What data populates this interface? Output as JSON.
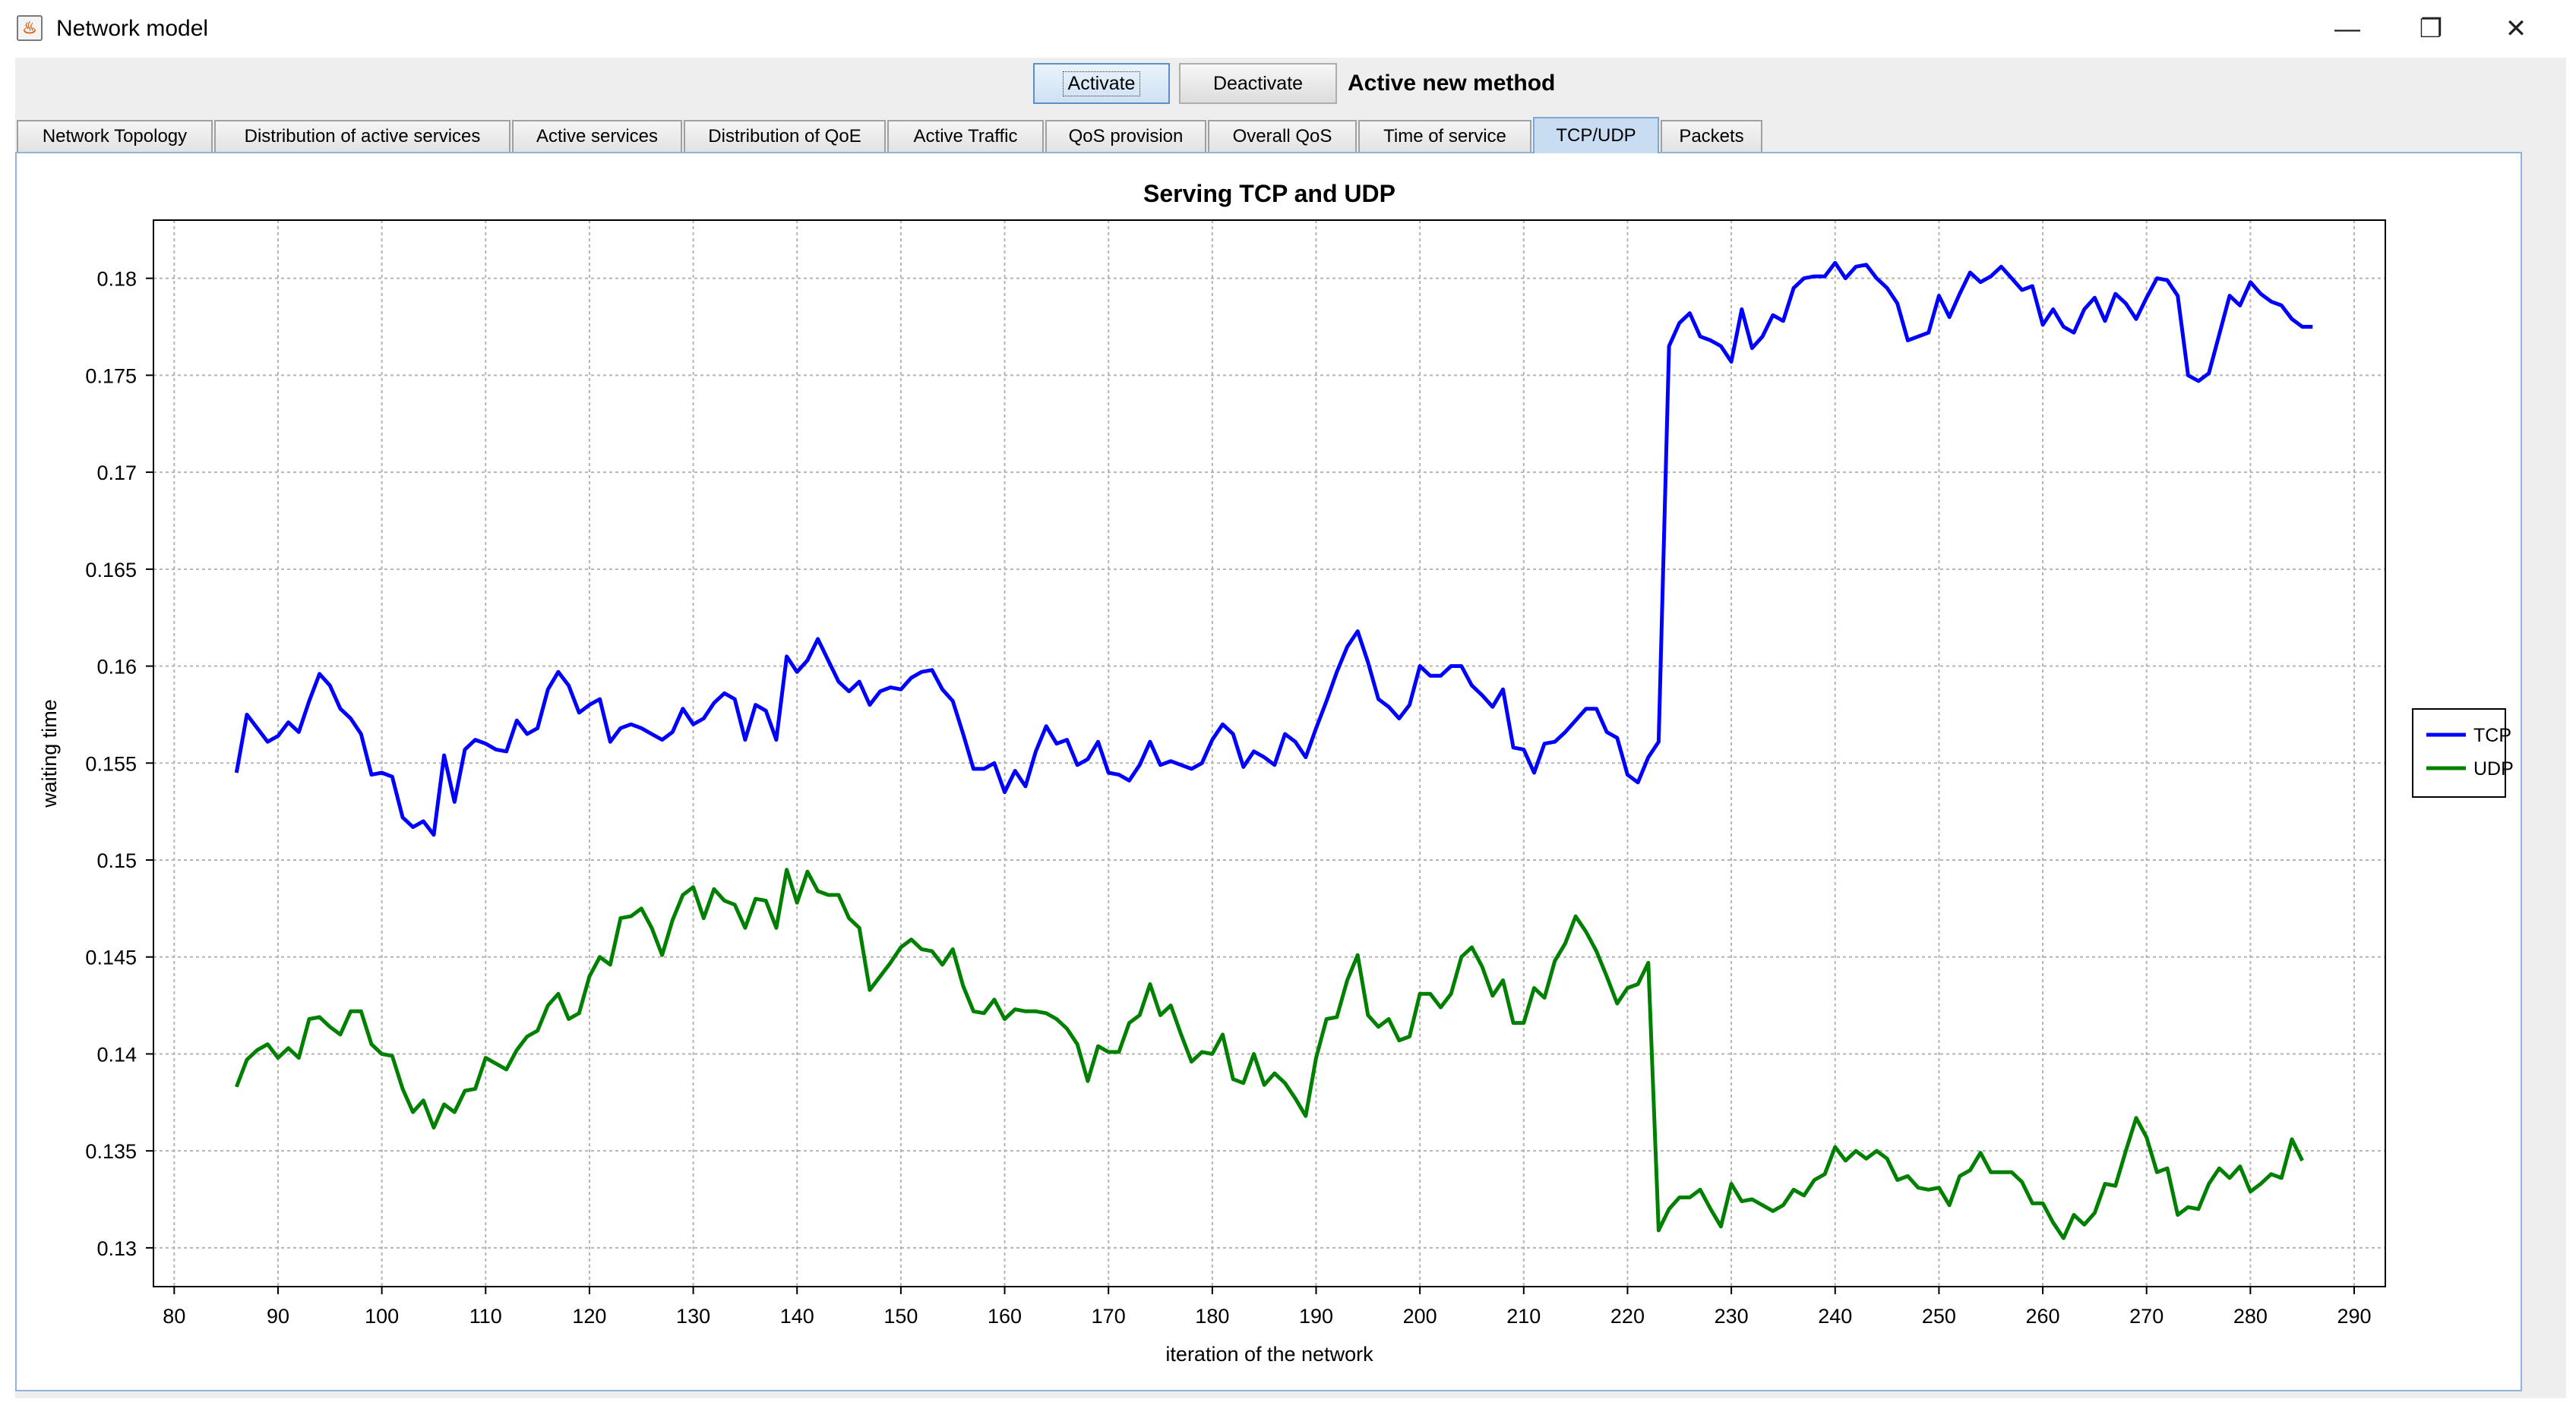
{
  "window": {
    "title": "Network model",
    "minimize_glyph": "—",
    "restore_glyph": "❐",
    "close_glyph": "✕"
  },
  "toolbar": {
    "activate_label": "Activate",
    "deactivate_label": "Deactivate",
    "status_label": "Active new method"
  },
  "tabs": [
    {
      "label": "Network Topology",
      "active": false
    },
    {
      "label": "Distribution of active services",
      "active": false
    },
    {
      "label": "Active services",
      "active": false
    },
    {
      "label": "Distribution of QoE",
      "active": false
    },
    {
      "label": "Active Traffic",
      "active": false
    },
    {
      "label": "QoS provision",
      "active": false
    },
    {
      "label": "Overall QoS",
      "active": false
    },
    {
      "label": "Time of service",
      "active": false
    },
    {
      "label": "TCP/UDP",
      "active": true
    },
    {
      "label": "Packets",
      "active": false
    }
  ],
  "chart_data": {
    "type": "line",
    "title": "Serving TCP and UDP",
    "xlabel": "iteration of the network",
    "ylabel": "waiting time",
    "xlim": [
      78,
      293
    ],
    "ylim": [
      0.128,
      0.183
    ],
    "x_ticks": [
      80,
      90,
      100,
      110,
      120,
      130,
      140,
      150,
      160,
      170,
      180,
      190,
      200,
      210,
      220,
      230,
      240,
      250,
      260,
      270,
      280,
      290
    ],
    "y_ticks": [
      0.13,
      0.135,
      0.14,
      0.145,
      0.15,
      0.155,
      0.16,
      0.165,
      0.17,
      0.175,
      0.18
    ],
    "y_tick_labels": [
      "0.13",
      "0.135",
      "0.14",
      "0.145",
      "0.15",
      "0.155",
      "0.16",
      "0.165",
      "0.17",
      "0.175",
      "0.18"
    ],
    "grid": true,
    "legend_position": "right",
    "x_start": 86,
    "x_end": 285,
    "series": [
      {
        "name": "TCP",
        "color": "#0000ff",
        "values": [
          0.1545,
          0.1575,
          0.1568,
          0.1561,
          0.1564,
          0.1571,
          0.1566,
          0.1582,
          0.1596,
          0.159,
          0.1578,
          0.1573,
          0.1565,
          0.1544,
          0.1545,
          0.1543,
          0.1522,
          0.1517,
          0.152,
          0.1513,
          0.1554,
          0.153,
          0.1557,
          0.1562,
          0.156,
          0.1557,
          0.1556,
          0.1572,
          0.1565,
          0.1568,
          0.1588,
          0.1597,
          0.159,
          0.1576,
          0.158,
          0.1583,
          0.1561,
          0.1568,
          0.157,
          0.1568,
          0.1565,
          0.1562,
          0.1566,
          0.1578,
          0.157,
          0.1573,
          0.1581,
          0.1586,
          0.1583,
          0.1562,
          0.158,
          0.1577,
          0.1562,
          0.1605,
          0.1597,
          0.1603,
          0.1614,
          0.1603,
          0.1592,
          0.1587,
          0.1592,
          0.158,
          0.1587,
          0.1589,
          0.1588,
          0.1594,
          0.1597,
          0.1598,
          0.1588,
          0.1582,
          0.1565,
          0.1547,
          0.1547,
          0.155,
          0.1535,
          0.1546,
          0.1538,
          0.1556,
          0.1569,
          0.156,
          0.1562,
          0.1549,
          0.1552,
          0.1561,
          0.1545,
          0.1544,
          0.1541,
          0.1549,
          0.1561,
          0.1549,
          0.1551,
          0.1549,
          0.1547,
          0.155,
          0.1562,
          0.157,
          0.1565,
          0.1548,
          0.1556,
          0.1553,
          0.1549,
          0.1565,
          0.1561,
          0.1553,
          0.1568,
          0.1582,
          0.1597,
          0.161,
          0.1618,
          0.1602,
          0.1583,
          0.1579,
          0.1573,
          0.158,
          0.16,
          0.1595,
          0.1595,
          0.16,
          0.16,
          0.159,
          0.1585,
          0.1579,
          0.1588,
          0.1558,
          0.1557,
          0.1545,
          0.156,
          0.1561,
          0.1566,
          0.1572,
          0.1578,
          0.1578,
          0.1566,
          0.1563,
          0.1544,
          0.154,
          0.1553,
          0.1561,
          0.1765,
          0.1777,
          0.1782,
          0.177,
          0.1768,
          0.1765,
          0.1757,
          0.1784,
          0.1764,
          0.177,
          0.1781,
          0.1778,
          0.1795,
          0.18,
          0.1801,
          0.1801,
          0.1808,
          0.18,
          0.1806,
          0.1807,
          0.18,
          0.1795,
          0.1787,
          0.1768,
          0.177,
          0.1772,
          0.1791,
          0.178,
          0.1792,
          0.1803,
          0.1798,
          0.1801,
          0.1806,
          0.18,
          0.1794,
          0.1796,
          0.1776,
          0.1784,
          0.1775,
          0.1772,
          0.1784,
          0.179,
          0.1778,
          0.1792,
          0.1787,
          0.1779,
          0.179,
          0.18,
          0.1799,
          0.1791,
          0.175,
          0.1747,
          0.1751,
          0.1771,
          0.1791,
          0.1786,
          0.1798,
          0.1792,
          0.1788,
          0.1786,
          0.1779,
          0.1775,
          0.1775
        ]
      },
      {
        "name": "UDP",
        "color": "#008000",
        "values": [
          0.1383,
          0.1397,
          0.1402,
          0.1405,
          0.1398,
          0.1403,
          0.1398,
          0.1418,
          0.1419,
          0.1414,
          0.141,
          0.1422,
          0.1422,
          0.1405,
          0.14,
          0.1399,
          0.1382,
          0.137,
          0.1376,
          0.1362,
          0.1374,
          0.137,
          0.1381,
          0.1382,
          0.1398,
          0.1395,
          0.1392,
          0.1402,
          0.1409,
          0.1412,
          0.1425,
          0.1431,
          0.1418,
          0.1421,
          0.144,
          0.145,
          0.1446,
          0.147,
          0.1471,
          0.1475,
          0.1465,
          0.1451,
          0.1469,
          0.1482,
          0.1486,
          0.147,
          0.1485,
          0.1479,
          0.1477,
          0.1465,
          0.148,
          0.1479,
          0.1465,
          0.1495,
          0.1478,
          0.1494,
          0.1484,
          0.1482,
          0.1482,
          0.147,
          0.1465,
          0.1433,
          0.144,
          0.1447,
          0.1455,
          0.1459,
          0.1454,
          0.1453,
          0.1446,
          0.1454,
          0.1435,
          0.1422,
          0.1421,
          0.1428,
          0.1418,
          0.1423,
          0.1422,
          0.1422,
          0.1421,
          0.1418,
          0.1413,
          0.1405,
          0.1386,
          0.1404,
          0.1401,
          0.1401,
          0.1416,
          0.142,
          0.1436,
          0.142,
          0.1425,
          0.141,
          0.1396,
          0.1401,
          0.14,
          0.141,
          0.1387,
          0.1385,
          0.14,
          0.1384,
          0.139,
          0.1385,
          0.1377,
          0.1368,
          0.1398,
          0.1418,
          0.1419,
          0.1438,
          0.1451,
          0.142,
          0.1414,
          0.1418,
          0.1407,
          0.1409,
          0.1431,
          0.1431,
          0.1424,
          0.1431,
          0.145,
          0.1455,
          0.1445,
          0.143,
          0.1438,
          0.1416,
          0.1416,
          0.1434,
          0.1429,
          0.1448,
          0.1457,
          0.1471,
          0.1463,
          0.1453,
          0.144,
          0.1426,
          0.1434,
          0.1436,
          0.1447,
          0.1309,
          0.132,
          0.1326,
          0.1326,
          0.133,
          0.132,
          0.1311,
          0.1333,
          0.1324,
          0.1325,
          0.1322,
          0.1319,
          0.1322,
          0.133,
          0.1327,
          0.1335,
          0.1338,
          0.1352,
          0.1345,
          0.135,
          0.1346,
          0.135,
          0.1346,
          0.1335,
          0.1337,
          0.1331,
          0.133,
          0.1331,
          0.1322,
          0.1337,
          0.134,
          0.1349,
          0.1339,
          0.1339,
          0.1339,
          0.1334,
          0.1323,
          0.1323,
          0.1313,
          0.1305,
          0.1317,
          0.1312,
          0.1318,
          0.1333,
          0.1332,
          0.135,
          0.1367,
          0.1357,
          0.1339,
          0.1341,
          0.1317,
          0.1321,
          0.132,
          0.1333,
          0.1341,
          0.1336,
          0.1342,
          0.1329,
          0.1333,
          0.1338,
          0.1336,
          0.1356,
          0.1345
        ]
      }
    ]
  }
}
